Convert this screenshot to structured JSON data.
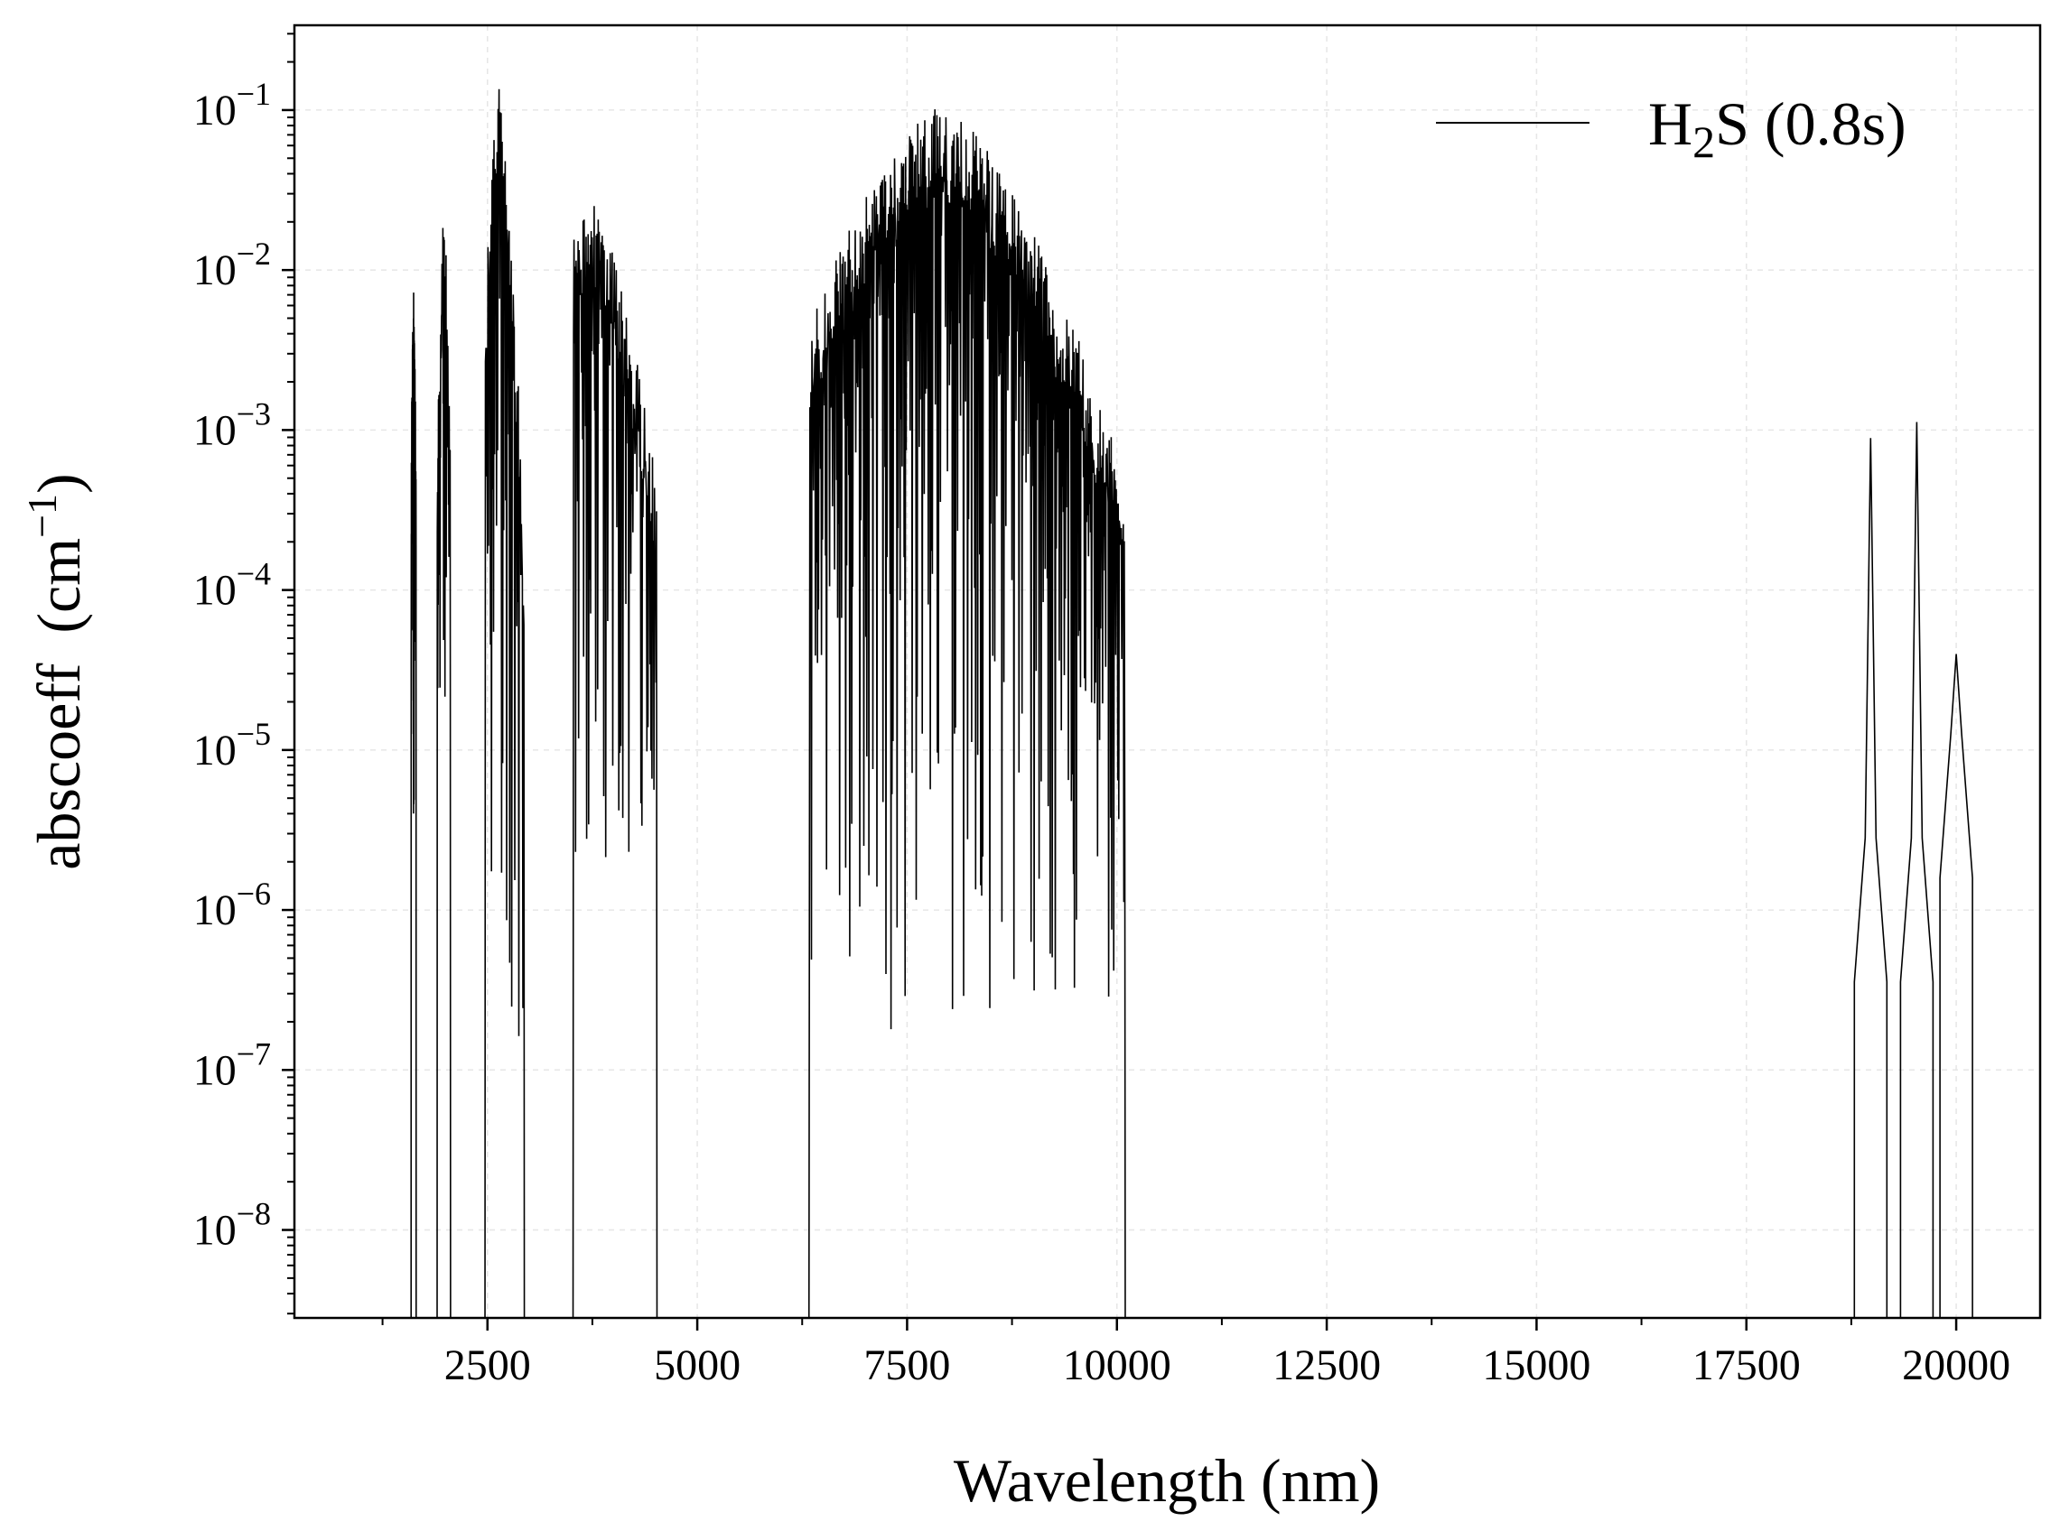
{
  "chart_data": {
    "type": "line",
    "title": "",
    "xlabel": "Wavelength (nm)",
    "ylabel": "abscoeff",
    "ylabel_unit": "(cm",
    "ylabel_unit_exp": "−1",
    "ylabel_unit_close": ")",
    "yscale": "log",
    "xlim": [
      200,
      21000
    ],
    "ylim_exp": [
      -8.55,
      -0.47
    ],
    "grid": true,
    "legend_position": "top-right",
    "xticks": [
      {
        "value": 2500,
        "label": "2500"
      },
      {
        "value": 5000,
        "label": "5000"
      },
      {
        "value": 7500,
        "label": "7500"
      },
      {
        "value": 10000,
        "label": "10000"
      },
      {
        "value": 12500,
        "label": "12500"
      },
      {
        "value": 15000,
        "label": "15000"
      },
      {
        "value": 17500,
        "label": "17500"
      },
      {
        "value": 20000,
        "label": "20000"
      }
    ],
    "yticks": [
      {
        "exp": -1,
        "base": "10",
        "sup": "−1"
      },
      {
        "exp": -2,
        "base": "10",
        "sup": "−2"
      },
      {
        "exp": -3,
        "base": "10",
        "sup": "−3"
      },
      {
        "exp": -4,
        "base": "10",
        "sup": "−4"
      },
      {
        "exp": -5,
        "base": "10",
        "sup": "−5"
      },
      {
        "exp": -6,
        "base": "10",
        "sup": "−6"
      },
      {
        "exp": -7,
        "base": "10",
        "sup": "−7"
      },
      {
        "exp": -8,
        "base": "10",
        "sup": "−8"
      }
    ],
    "series": [
      {
        "name": "H2S (0.8s)",
        "legend_main": "H",
        "legend_sub": "2",
        "legend_rest": "S (0.8s)",
        "color": "#000000",
        "bands": [
          {
            "start": 1590,
            "end": 1650,
            "peak_center": 1620,
            "peak_exp": -2.05,
            "floor_exp": -5.2,
            "edge_exp": -3.2
          },
          {
            "start": 1900,
            "end": 2060,
            "peak_center": 1980,
            "peak_exp": -1.55,
            "floor_exp": -4.3,
            "edge_exp": -3.3
          },
          {
            "start": 2470,
            "end": 2940,
            "peak_center": 2650,
            "peak_exp": -0.8,
            "floor_exp": -6.6,
            "edge_exp": -3.8
          },
          {
            "start": 3520,
            "end": 4520,
            "peak_center": 3720,
            "peak_exp": -1.55,
            "floor_exp": -5.3,
            "edge_exp": -3.3
          },
          {
            "start": 6330,
            "end": 10100,
            "peak_center": 7900,
            "peak_exp": -0.98,
            "floor_exp": -6.4,
            "edge_exp": -3.3
          }
        ],
        "sparse_lines": [
          {
            "x": 18980,
            "peak_exp": -3.05,
            "base_exp": -6.45
          },
          {
            "x": 19530,
            "peak_exp": -2.95,
            "base_exp": -6.45
          },
          {
            "x": 20000,
            "peak_exp": -4.4,
            "base_exp": -5.8
          }
        ]
      }
    ]
  }
}
